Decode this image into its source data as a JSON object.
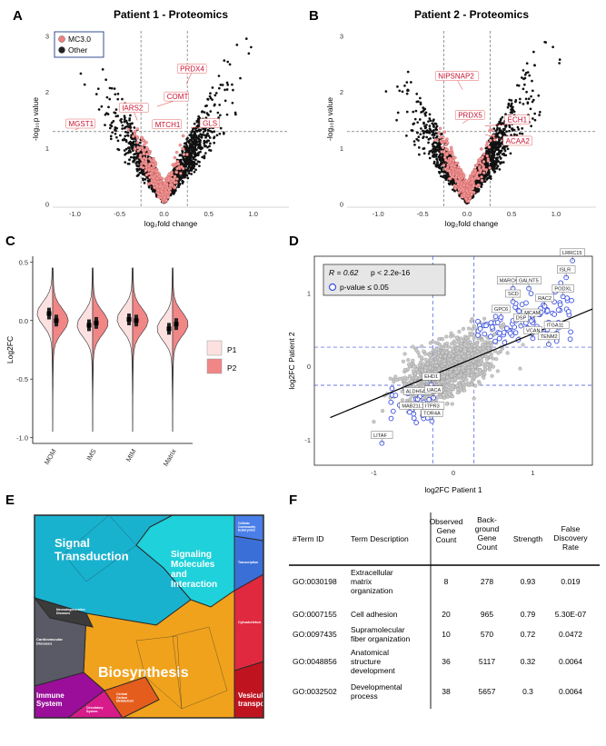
{
  "panels": {
    "A": {
      "label": "A",
      "title": "Patient 1 - Proteomics"
    },
    "B": {
      "label": "B",
      "title": "Patient 2 - Proteomics"
    },
    "C": {
      "label": "C"
    },
    "D": {
      "label": "D"
    },
    "E": {
      "label": "E"
    },
    "F": {
      "label": "F"
    }
  },
  "chart_data": [
    {
      "id": "A",
      "type": "scatter",
      "title": "Patient 1 - Proteomics",
      "xlabel": "log₂fold change",
      "ylabel": "-log₁₀p value",
      "xticks": [
        "-1.0",
        "-0.5",
        "0.0",
        "0.5",
        "1.0"
      ],
      "yticks": [
        "0",
        "1",
        "2",
        "3"
      ],
      "xlim": [
        -1.25,
        1.4
      ],
      "ylim": [
        -0.05,
        3.1
      ],
      "thresholds": {
        "x": [
          -0.26,
          0.26
        ],
        "y": 1.3
      },
      "legend": {
        "position": "top-left",
        "items": [
          {
            "name": "MC3.0",
            "color": "#f08080"
          },
          {
            "name": "Other",
            "color": "#222222"
          }
        ]
      },
      "labels": [
        {
          "text": "MGST1",
          "x": -1.0,
          "y": 1.33
        },
        {
          "text": "IARS2",
          "x": -0.3,
          "y": 1.5
        },
        {
          "text": "COMT",
          "x": -0.08,
          "y": 1.75
        },
        {
          "text": "MTCH1",
          "x": -0.05,
          "y": 1.35
        },
        {
          "text": "PRDX4",
          "x": 0.25,
          "y": 2.15
        },
        {
          "text": "GLS",
          "x": 0.3,
          "y": 1.37
        }
      ]
    },
    {
      "id": "B",
      "type": "scatter",
      "title": "Patient 2 - Proteomics",
      "xlabel": "log₂fold change",
      "ylabel": "-log₁₀p value",
      "xticks": [
        "-1.0",
        "-0.5",
        "0.0",
        "0.5",
        "1.0"
      ],
      "yticks": [
        "0",
        "1",
        "2",
        "3"
      ],
      "xlim": [
        -1.35,
        1.45
      ],
      "ylim": [
        -0.05,
        3.1
      ],
      "thresholds": {
        "x": [
          -0.26,
          0.26
        ],
        "y": 1.3
      },
      "labels": [
        {
          "text": "NIPSNAP2",
          "x": -0.05,
          "y": 2.05
        },
        {
          "text": "PRDX5",
          "x": -0.05,
          "y": 1.45
        },
        {
          "text": "ECH1",
          "x": 0.2,
          "y": 1.4
        },
        {
          "text": "ACAA2",
          "x": 0.2,
          "y": 1.25
        }
      ]
    },
    {
      "id": "C",
      "type": "violin",
      "ylabel": "Log2FC",
      "yticks": [
        "0.5",
        "0.0",
        "-0.5",
        "-1.0"
      ],
      "ylim": [
        -1.05,
        0.55
      ],
      "categories": [
        "MOM",
        "IMS",
        "MIM",
        "Matrix"
      ],
      "series": [
        {
          "name": "P1",
          "color": "#fde1e1",
          "medians": [
            0.06,
            -0.04,
            0.01,
            -0.07
          ]
        },
        {
          "name": "P2",
          "color": "#f08686",
          "medians": [
            0.0,
            -0.02,
            0.0,
            -0.03
          ]
        }
      ]
    },
    {
      "id": "D",
      "type": "scatter",
      "xlabel": "log2FC Patient 1",
      "ylabel": "log2FC Patient 2",
      "xticks": [
        "-1",
        "0",
        "1"
      ],
      "yticks": [
        "1",
        "0",
        "-1"
      ],
      "xlim": [
        -1.75,
        1.75
      ],
      "ylim": [
        -1.35,
        1.5
      ],
      "stats": {
        "r_text": "R = 0.62",
        "p_text": "p < 2.2e-16"
      },
      "legend": {
        "text": "p-value ≤ 0.05",
        "color": "#3b4fe0"
      },
      "regression": {
        "x": [
          -1.55,
          1.75
        ],
        "y": [
          -0.7,
          0.78
        ]
      },
      "thresholds": {
        "x": [
          -0.26,
          0.26
        ],
        "y": [
          -0.26,
          0.26
        ]
      },
      "genes": [
        {
          "text": "LRRC15",
          "x": 1.5,
          "y": 1.44
        },
        {
          "text": "MARCKSL1",
          "x": 0.75,
          "y": 1.06
        },
        {
          "text": "GALNT5",
          "x": 0.95,
          "y": 1.06
        },
        {
          "text": "ISLR",
          "x": 1.42,
          "y": 1.21
        },
        {
          "text": "SCD",
          "x": 0.75,
          "y": 0.88
        },
        {
          "text": "RAC2",
          "x": 1.15,
          "y": 0.82
        },
        {
          "text": "PODXL",
          "x": 1.38,
          "y": 0.95
        },
        {
          "text": "GPC6",
          "x": 0.6,
          "y": 0.67
        },
        {
          "text": "MCAM",
          "x": 0.98,
          "y": 0.62
        },
        {
          "text": "DSP",
          "x": 0.85,
          "y": 0.55
        },
        {
          "text": "ITGA11",
          "x": 1.3,
          "y": 0.45
        },
        {
          "text": "VCAN",
          "x": 1.0,
          "y": 0.38
        },
        {
          "text": "TENM2",
          "x": 1.2,
          "y": 0.3
        },
        {
          "text": "EHD1",
          "x": -0.28,
          "y": -0.25
        },
        {
          "text": "ALDH5A1",
          "x": -0.45,
          "y": -0.45
        },
        {
          "text": "UACA",
          "x": -0.25,
          "y": -0.43
        },
        {
          "text": "MAB21L1",
          "x": -0.5,
          "y": -0.65
        },
        {
          "text": "ITPR3",
          "x": -0.25,
          "y": -0.65
        },
        {
          "text": "TOR4A",
          "x": -0.27,
          "y": -0.75
        },
        {
          "text": "LITAF",
          "x": -0.9,
          "y": -1.05
        }
      ]
    }
  ],
  "treemap": {
    "cells": [
      {
        "text": "Signal\nTransduction",
        "color": "#18b2cf",
        "size": 13
      },
      {
        "text": "Signaling\nMolecules\nand\nInteraction",
        "color": "#1ed1da",
        "size": 11
      },
      {
        "text": "Biosynthesis",
        "color": "#f0a21c",
        "size": 20
      },
      {
        "text": "Vesicular\ntransport",
        "color": "#c01320",
        "size": 8
      },
      {
        "text": "Immune\nSystem",
        "color": "#9a0e9a",
        "size": 9
      },
      {
        "text": "Cytoskeleton",
        "color": "#e0293f",
        "size": 4
      },
      {
        "text": "Cardiovascular\nDiseases",
        "color": "#5a5a66",
        "size": 4
      },
      {
        "text": "Neurodegenerative\nDiseases",
        "color": "#3b3b3b",
        "size": 3
      },
      {
        "text": "Circulatory\nSystem",
        "color": "#d81b8a",
        "size": 3
      },
      {
        "text": "Central\nCarbon\nMetabolism",
        "color": "#e45d1d",
        "size": 3
      },
      {
        "text": "Transcription",
        "color": "#3b6fd8",
        "size": 3
      },
      {
        "text": "Cellular\nCommunity\nEukaryotes",
        "color": "#4a7ee8",
        "size": 3
      }
    ]
  },
  "table": {
    "headers": [
      "#Term ID",
      "Term Description",
      "Observed\nGene\nCount",
      "Back-\nground\nGene\nCount",
      "Strength",
      "False\nDiscovery\nRate"
    ],
    "rows": [
      {
        "id": "GO:0030198",
        "desc": "Extracellular\nmatrix\norganization",
        "observed": "8",
        "background": "278",
        "strength": "0.93",
        "fdr": "0.019"
      },
      {
        "id": "GO:0007155",
        "desc": "Cell adhesion",
        "observed": "20",
        "background": "965",
        "strength": "0.79",
        "fdr": "5.30E-07"
      },
      {
        "id": "GO:0097435",
        "desc": "Supramolecular\nfiber organization",
        "observed": "10",
        "background": "570",
        "strength": "0.72",
        "fdr": "0.0472"
      },
      {
        "id": "GO:0048856",
        "desc": "Anatomical\nstructure\ndevelopment",
        "observed": "36",
        "background": "5117",
        "strength": "0.32",
        "fdr": "0.0064"
      },
      {
        "id": "GO:0032502",
        "desc": "Developmental\nprocess",
        "observed": "38",
        "background": "5657",
        "strength": "0.3",
        "fdr": "0.0064"
      }
    ]
  }
}
